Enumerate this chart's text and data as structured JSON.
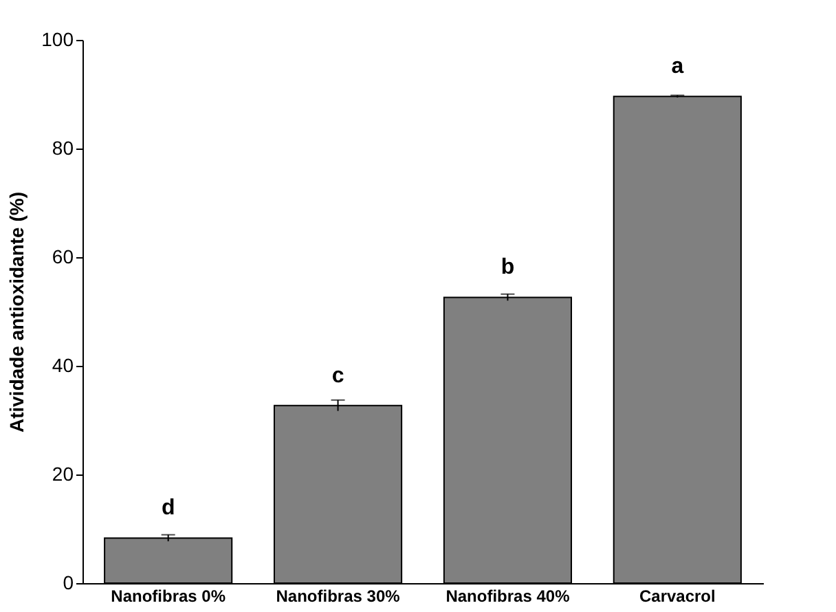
{
  "chart_data": {
    "type": "bar",
    "ylabel": "Atividade antioxidante (%)",
    "categories": [
      "Nanofibras 0%",
      "Nanofibras 30%",
      "Nanofibras 40%",
      "Carvacrol"
    ],
    "values": [
      8.3,
      32.7,
      52.6,
      89.6
    ],
    "color": "#808080",
    "errors": [
      0.6,
      1.0,
      0.6,
      0.2
    ],
    "ylim": [
      0,
      100
    ],
    "yticks": [
      0,
      20,
      40,
      60,
      80,
      100
    ],
    "annotations": [
      {
        "text": "d",
        "x": "Nanofibras 0%",
        "y": 8.3
      },
      {
        "text": "c",
        "x": "Nanofibras 30%",
        "y": 32.7
      },
      {
        "text": "b",
        "x": "Nanofibras 40%",
        "y": 52.6
      },
      {
        "text": "a",
        "x": "Carvacrol",
        "y": 89.6
      }
    ],
    "grid": false
  }
}
